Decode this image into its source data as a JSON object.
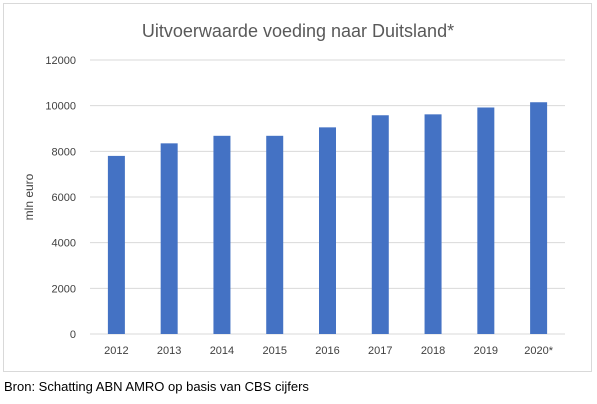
{
  "chart_data": {
    "type": "bar",
    "title": "Uitvoerwaarde voeding naar Duitsland*",
    "xlabel": "",
    "ylabel": "mln euro",
    "categories": [
      "2012",
      "2013",
      "2014",
      "2015",
      "2016",
      "2017",
      "2018",
      "2019",
      "2020*"
    ],
    "values": [
      7800,
      8350,
      8680,
      8680,
      9050,
      9580,
      9620,
      9920,
      10150
    ],
    "ylim": [
      0,
      12000
    ],
    "yticks": [
      0,
      2000,
      4000,
      6000,
      8000,
      10000,
      12000
    ],
    "ytick_labels": [
      "0",
      "2000",
      "4000",
      "6000",
      "8000",
      "10000",
      "12000"
    ],
    "grid": true,
    "legend": "none",
    "colors": {
      "bar": "#4472c4",
      "grid": "#d9d9d9"
    }
  },
  "source_note": "Bron: Schatting ABN AMRO op basis van CBS cijfers"
}
